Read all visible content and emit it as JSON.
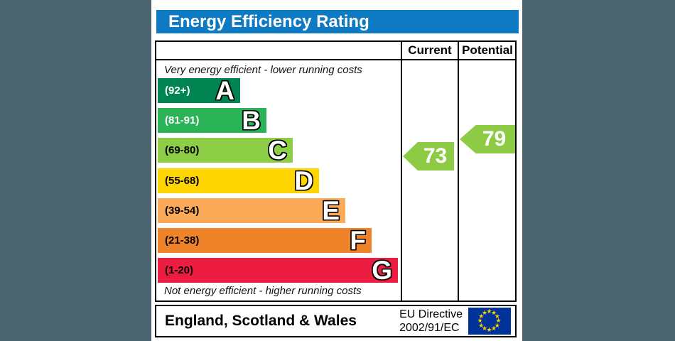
{
  "title": "Energy Efficiency Rating",
  "columns": {
    "current": "Current",
    "potential": "Potential"
  },
  "captions": {
    "top": "Very energy efficient - lower running costs",
    "bottom": "Not energy efficient - higher running costs"
  },
  "footer": {
    "region": "England, Scotland & Wales",
    "directive_line1": "EU Directive",
    "directive_line2": "2002/91/EC",
    "flag": "eu-flag-icon"
  },
  "colors": {
    "page_background": "#4d6570",
    "header_blue": "#0e7ac4",
    "arrow_green": "#8ecb44",
    "eu_flag_blue": "#003399",
    "eu_star_yellow": "#ffcc00"
  },
  "chart_data": {
    "type": "bar",
    "title": "Energy Efficiency Rating",
    "score_range": [
      1,
      100
    ],
    "bands": [
      {
        "letter": "A",
        "range": "(92+)",
        "min": 92,
        "max": 100,
        "color": "#008552",
        "label_color": "#ffffff"
      },
      {
        "letter": "B",
        "range": "(81-91)",
        "min": 81,
        "max": 91,
        "color": "#2bb457",
        "label_color": "#ffffff"
      },
      {
        "letter": "C",
        "range": "(69-80)",
        "min": 69,
        "max": 80,
        "color": "#8dce46",
        "label_color": "#000000"
      },
      {
        "letter": "D",
        "range": "(55-68)",
        "min": 55,
        "max": 68,
        "color": "#ffd500",
        "label_color": "#000000"
      },
      {
        "letter": "E",
        "range": "(39-54)",
        "min": 39,
        "max": 54,
        "color": "#fbab57",
        "label_color": "#000000"
      },
      {
        "letter": "F",
        "range": "(21-38)",
        "min": 21,
        "max": 38,
        "color": "#ef8329",
        "label_color": "#000000"
      },
      {
        "letter": "G",
        "range": "(1-20)",
        "min": 1,
        "max": 20,
        "color": "#ed1c41",
        "label_color": "#000000"
      }
    ],
    "current": {
      "value": 73,
      "band": "C",
      "color": "#8ecb44"
    },
    "potential": {
      "value": 79,
      "band": "C",
      "color": "#8ecb44"
    }
  }
}
